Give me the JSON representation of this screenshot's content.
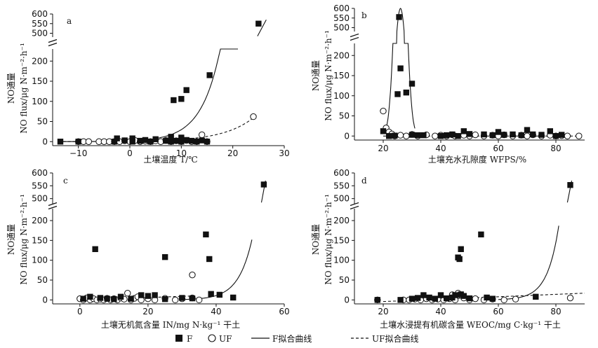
{
  "chart_data": [
    {
      "panel": "a",
      "type": "scatter",
      "ylabel_top": "NO通量",
      "ylabel_bottom": "NO flux/μg N·m⁻²·h⁻¹",
      "xlabel": "土壤温度 T/℃",
      "xlim": [
        -15,
        30
      ],
      "xticks": [
        -10,
        0,
        10,
        20,
        30
      ],
      "y_lower": [
        -10,
        230
      ],
      "y_upper": [
        480,
        600
      ],
      "yticks_lower": [
        0,
        50,
        100,
        150,
        200
      ],
      "yticks_upper": [
        500,
        550,
        600
      ],
      "F": [
        [
          -13.5,
          0
        ],
        [
          -10,
          0
        ],
        [
          -3,
          0
        ],
        [
          -2.5,
          8
        ],
        [
          -1,
          3
        ],
        [
          0.5,
          0
        ],
        [
          0.5,
          8
        ],
        [
          2,
          2
        ],
        [
          3,
          4
        ],
        [
          4,
          0
        ],
        [
          5,
          6
        ],
        [
          7,
          2
        ],
        [
          8,
          0
        ],
        [
          8,
          12
        ],
        [
          9,
          2
        ],
        [
          10,
          10
        ],
        [
          10,
          0
        ],
        [
          11,
          4
        ],
        [
          12,
          2
        ],
        [
          13,
          0
        ],
        [
          14,
          3
        ],
        [
          15,
          0
        ],
        [
          8.5,
          103
        ],
        [
          10,
          106
        ],
        [
          11,
          128
        ],
        [
          15.5,
          165
        ],
        [
          25,
          550
        ]
      ],
      "UF": [
        [
          -10,
          0
        ],
        [
          -9,
          0
        ],
        [
          -8,
          0
        ],
        [
          -6,
          0
        ],
        [
          -5,
          0
        ],
        [
          -4,
          0
        ],
        [
          -3,
          0
        ],
        [
          -2,
          0
        ],
        [
          -1,
          2
        ],
        [
          0,
          0
        ],
        [
          1,
          3
        ],
        [
          2,
          0
        ],
        [
          3,
          1
        ],
        [
          4,
          0
        ],
        [
          5,
          2
        ],
        [
          6,
          0
        ],
        [
          7,
          3
        ],
        [
          8,
          0
        ],
        [
          9,
          2
        ],
        [
          10,
          0
        ],
        [
          11,
          3
        ],
        [
          12,
          0
        ],
        [
          13,
          0
        ],
        [
          14,
          17
        ],
        [
          15,
          0
        ],
        [
          24,
          62
        ]
      ],
      "F_fit": {
        "type": "exp",
        "a": 2,
        "b": 0.27,
        "x_range": [
          -13,
          21
        ],
        "upper_x_range": [
          24.8,
          26.5
        ]
      },
      "UF_fit": {
        "type": "exp",
        "a": 1,
        "b": 0.17,
        "x_range": [
          -13,
          24
        ]
      }
    },
    {
      "panel": "b",
      "type": "scatter",
      "ylabel_top": "NO通量",
      "ylabel_bottom": "NO flux/μg N·m⁻²·h⁻¹",
      "xlabel": "土壤充水孔隙度 WFPS/%",
      "xlim": [
        10,
        90
      ],
      "xticks": [
        20,
        40,
        60,
        80
      ],
      "y_lower": [
        -10,
        230
      ],
      "y_upper": [
        480,
        600
      ],
      "yticks_lower": [
        0,
        50,
        100,
        150,
        200
      ],
      "yticks_upper": [
        500,
        550,
        600
      ],
      "F": [
        [
          20,
          12
        ],
        [
          22,
          0
        ],
        [
          24,
          1
        ],
        [
          25,
          104
        ],
        [
          25.5,
          555
        ],
        [
          26,
          168
        ],
        [
          28,
          108
        ],
        [
          30,
          130
        ],
        [
          30,
          3
        ],
        [
          32,
          2
        ],
        [
          34,
          2
        ],
        [
          40,
          0
        ],
        [
          42,
          2
        ],
        [
          44,
          4
        ],
        [
          46,
          0
        ],
        [
          48,
          12
        ],
        [
          50,
          5
        ],
        [
          55,
          4
        ],
        [
          58,
          2
        ],
        [
          60,
          10
        ],
        [
          62,
          3
        ],
        [
          65,
          4
        ],
        [
          68,
          2
        ],
        [
          70,
          15
        ],
        [
          72,
          4
        ],
        [
          75,
          3
        ],
        [
          78,
          12
        ],
        [
          80,
          0
        ],
        [
          82,
          3
        ]
      ],
      "UF": [
        [
          20,
          62
        ],
        [
          21,
          20
        ],
        [
          22,
          10
        ],
        [
          23,
          5
        ],
        [
          24,
          0
        ],
        [
          26,
          2
        ],
        [
          28,
          0
        ],
        [
          30,
          4
        ],
        [
          32,
          0
        ],
        [
          35,
          3
        ],
        [
          38,
          0
        ],
        [
          40,
          2
        ],
        [
          42,
          0
        ],
        [
          44,
          3
        ],
        [
          45,
          0
        ],
        [
          48,
          2
        ],
        [
          50,
          0
        ],
        [
          52,
          3
        ],
        [
          55,
          0
        ],
        [
          58,
          2
        ],
        [
          60,
          0
        ],
        [
          62,
          3
        ],
        [
          65,
          0
        ],
        [
          68,
          2
        ],
        [
          70,
          0
        ],
        [
          72,
          3
        ],
        [
          75,
          0
        ],
        [
          78,
          2
        ],
        [
          80,
          0
        ],
        [
          82,
          1
        ],
        [
          84,
          0
        ],
        [
          88,
          0
        ]
      ],
      "F_fit": {
        "type": "gauss",
        "peak": 600,
        "center": 26,
        "sigma": 1.9,
        "x_range": [
          21,
          31
        ]
      },
      "UF_fit": {
        "type": "flat",
        "value": 0,
        "x_range": [
          20,
          88
        ]
      }
    },
    {
      "panel": "c",
      "type": "scatter",
      "ylabel_top": "NO通量",
      "ylabel_bottom": "NO flux/μg N·m⁻²·h⁻¹",
      "xlabel": "土壤无机氮含量 IN/mg N·kg⁻¹ 干土",
      "xlim": [
        -8,
        60
      ],
      "xticks": [
        0,
        20,
        40,
        60
      ],
      "y_lower": [
        -10,
        230
      ],
      "y_upper": [
        480,
        600
      ],
      "yticks_lower": [
        0,
        50,
        100,
        150,
        200
      ],
      "yticks_upper": [
        500,
        550,
        600
      ],
      "F": [
        [
          1,
          3
        ],
        [
          3,
          8
        ],
        [
          4.5,
          128
        ],
        [
          6,
          5
        ],
        [
          8,
          3
        ],
        [
          10,
          2
        ],
        [
          12,
          8
        ],
        [
          15,
          3
        ],
        [
          18,
          12
        ],
        [
          20,
          10
        ],
        [
          22,
          12
        ],
        [
          25,
          108
        ],
        [
          25,
          2
        ],
        [
          30,
          5
        ],
        [
          33,
          4
        ],
        [
          37,
          165
        ],
        [
          38,
          103
        ],
        [
          38.5,
          15
        ],
        [
          41,
          13
        ],
        [
          45,
          6
        ],
        [
          54,
          555
        ]
      ],
      "UF": [
        [
          0,
          3
        ],
        [
          1,
          0
        ],
        [
          2,
          5
        ],
        [
          3,
          0
        ],
        [
          4,
          3
        ],
        [
          5,
          0
        ],
        [
          6,
          2
        ],
        [
          7,
          0
        ],
        [
          8,
          4
        ],
        [
          9,
          0
        ],
        [
          10,
          3
        ],
        [
          11,
          0
        ],
        [
          12,
          5
        ],
        [
          13,
          2
        ],
        [
          14,
          17
        ],
        [
          15,
          0
        ],
        [
          16,
          4
        ],
        [
          17,
          8
        ],
        [
          18,
          0
        ],
        [
          20,
          3
        ],
        [
          22,
          0
        ],
        [
          25,
          4
        ],
        [
          28,
          0
        ],
        [
          30,
          3
        ],
        [
          33,
          63
        ],
        [
          33,
          5
        ],
        [
          35,
          0
        ]
      ],
      "F_fit": {
        "type": "exp",
        "a": 0.0005,
        "b": 0.25,
        "x_range": [
          30,
          50.5
        ],
        "upper_x_range": [
          53.3,
          54.5
        ]
      },
      "UF_fit": {
        "type": "linear",
        "a": 0,
        "b": 0.3,
        "x_range": [
          0,
          33
        ]
      }
    },
    {
      "panel": "d",
      "type": "scatter",
      "ylabel_top": "NO通量",
      "ylabel_bottom": "NO flux/μg N·m⁻²·h⁻¹",
      "xlabel": "土壤水浸提有机碳含量 WEOC/mg C·kg⁻¹ 干土",
      "xlim": [
        10,
        90
      ],
      "xticks": [
        20,
        40,
        60,
        80
      ],
      "y_lower": [
        -10,
        230
      ],
      "y_upper": [
        480,
        600
      ],
      "yticks_lower": [
        0,
        50,
        100,
        150,
        200
      ],
      "yticks_upper": [
        500,
        550,
        600
      ],
      "F": [
        [
          18,
          0
        ],
        [
          26,
          0
        ],
        [
          30,
          3
        ],
        [
          32,
          5
        ],
        [
          34,
          12
        ],
        [
          36,
          6
        ],
        [
          38,
          3
        ],
        [
          40,
          12
        ],
        [
          42,
          4
        ],
        [
          44,
          6
        ],
        [
          45,
          12
        ],
        [
          46,
          107
        ],
        [
          46.5,
          103
        ],
        [
          47,
          128
        ],
        [
          47,
          14
        ],
        [
          48,
          10
        ],
        [
          50,
          4
        ],
        [
          54,
          165
        ],
        [
          56,
          6
        ],
        [
          58,
          3
        ],
        [
          73,
          8
        ],
        [
          85,
          553
        ]
      ],
      "UF": [
        [
          18,
          0
        ],
        [
          27,
          0
        ],
        [
          29,
          0
        ],
        [
          31,
          2
        ],
        [
          33,
          0
        ],
        [
          35,
          3
        ],
        [
          37,
          0
        ],
        [
          39,
          2
        ],
        [
          41,
          0
        ],
        [
          43,
          3
        ],
        [
          44,
          13
        ],
        [
          45,
          0
        ],
        [
          46,
          17
        ],
        [
          47,
          12
        ],
        [
          48,
          5
        ],
        [
          50,
          0
        ],
        [
          52,
          3
        ],
        [
          55,
          0
        ],
        [
          58,
          2
        ],
        [
          62,
          0
        ],
        [
          66,
          2
        ],
        [
          85,
          5
        ]
      ],
      "F_fit": {
        "type": "exp",
        "a": 3e-07,
        "b": 0.25,
        "x_range": [
          60,
          81
        ],
        "upper_x_range": [
          84,
          85.5
        ]
      },
      "UF_fit": {
        "type": "linear",
        "a": -10,
        "b": 0.3,
        "x_range": [
          20,
          90
        ]
      }
    }
  ],
  "legend": {
    "F": "F",
    "UF": "UF",
    "F_fit": "F拟合曲线",
    "UF_fit": "UF拟合曲线"
  }
}
